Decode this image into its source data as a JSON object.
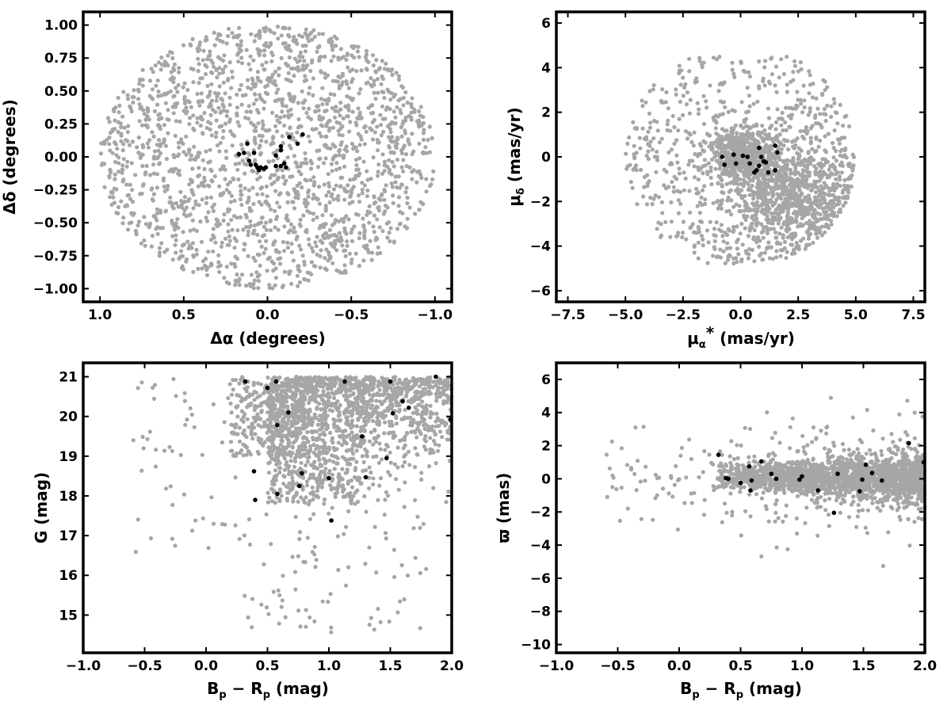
{
  "colors": {
    "field": "#a6a6a6",
    "members": "#000000",
    "axes": "#000000"
  },
  "chart_data": [
    {
      "type": "scatter",
      "title": "",
      "xlabel": "Δα (degrees)",
      "ylabel": "Δδ (degrees)",
      "xlim": [
        1.1,
        -1.1
      ],
      "ylim": [
        -1.1,
        1.1
      ],
      "x_inverted": true,
      "xticks": [
        1.0,
        0.5,
        0.0,
        -0.5,
        -1.0
      ],
      "xtick_labels": [
        "1.0",
        "0.5",
        "0.0",
        "−0.5",
        "−1.0"
      ],
      "yticks": [
        -1.0,
        -0.75,
        -0.5,
        -0.25,
        0.0,
        0.25,
        0.5,
        0.75,
        1.0
      ],
      "ytick_labels": [
        "−1.00",
        "−0.75",
        "−0.50",
        "−0.25",
        "0.00",
        "0.25",
        "0.50",
        "0.75",
        "1.00"
      ],
      "grid": false,
      "series": [
        {
          "role": "field stars",
          "color": "#a6a6a6",
          "distribution": "uniform within a circle of radius 1.0 deg centred on (0, 0)",
          "n_points": 1900
        },
        {
          "role": "highlighted stars",
          "color": "#000000",
          "points": [
            [
              0.17,
              0.02
            ],
            [
              0.14,
              0.03
            ],
            [
              0.12,
              0.1
            ],
            [
              0.11,
              -0.03
            ],
            [
              0.1,
              -0.06
            ],
            [
              0.08,
              0.03
            ],
            [
              0.07,
              -0.06
            ],
            [
              0.06,
              -0.08
            ],
            [
              0.05,
              -0.1
            ],
            [
              0.04,
              -0.08
            ],
            [
              0.02,
              -0.09
            ],
            [
              0.01,
              -0.08
            ],
            [
              -0.05,
              0.01
            ],
            [
              -0.05,
              -0.07
            ],
            [
              -0.08,
              0.08
            ],
            [
              -0.08,
              0.05
            ],
            [
              -0.08,
              -0.07
            ],
            [
              -0.1,
              -0.05
            ],
            [
              -0.11,
              -0.08
            ],
            [
              -0.13,
              0.15
            ],
            [
              -0.18,
              0.1
            ],
            [
              -0.21,
              0.17
            ]
          ]
        }
      ]
    },
    {
      "type": "scatter",
      "title": "",
      "xlabel": "μα* (mas/yr)",
      "ylabel": "μδ (mas/yr)",
      "xlim": [
        -8,
        8
      ],
      "ylim": [
        -6.5,
        6.5
      ],
      "xticks": [
        -7.5,
        -5.0,
        -2.5,
        0.0,
        2.5,
        5.0,
        7.5
      ],
      "xtick_labels": [
        "−7.5",
        "−5.0",
        "−2.5",
        "0.0",
        "2.5",
        "5.0",
        "7.5"
      ],
      "yticks": [
        -6,
        -4,
        -2,
        0,
        2,
        4,
        6
      ],
      "ytick_labels": [
        "−6",
        "−4",
        "−2",
        "0",
        "2",
        "4",
        "6"
      ],
      "grid": false,
      "series": [
        {
          "role": "field stars",
          "color": "#a6a6a6",
          "distribution": "disc of radius 5 mas/yr centred on (0, 0) clipped to -4.8 < μδ < 4.5, with dense clumps near (0, 0) and (2.5, -2)",
          "n_points": 2000
        },
        {
          "role": "highlighted stars",
          "color": "#000000",
          "points": [
            [
              -0.8,
              0.0
            ],
            [
              -0.7,
              -0.35
            ],
            [
              -0.3,
              0.1
            ],
            [
              -0.2,
              -0.3
            ],
            [
              0.1,
              0.05
            ],
            [
              0.3,
              0.0
            ],
            [
              0.4,
              -0.3
            ],
            [
              0.6,
              -0.7
            ],
            [
              0.7,
              -0.6
            ],
            [
              0.8,
              0.4
            ],
            [
              0.8,
              -0.4
            ],
            [
              0.9,
              0.0
            ],
            [
              1.0,
              -0.2
            ],
            [
              1.1,
              -0.25
            ],
            [
              1.2,
              -0.7
            ],
            [
              1.5,
              0.5
            ],
            [
              1.5,
              -0.6
            ],
            [
              1.6,
              0.2
            ]
          ]
        }
      ]
    },
    {
      "type": "scatter",
      "title": "",
      "xlabel": "Bp − Rp (mag)",
      "ylabel": "G (mag)",
      "xlim": [
        -1.0,
        2.0
      ],
      "ylim": [
        14.05,
        21.35
      ],
      "xticks": [
        -1.0,
        -0.5,
        0.0,
        0.5,
        1.0,
        1.5,
        2.0
      ],
      "xtick_labels": [
        "−1.0",
        "−0.5",
        "0.0",
        "0.5",
        "1.0",
        "1.5",
        "2.0"
      ],
      "yticks": [
        15,
        16,
        17,
        18,
        19,
        20,
        21
      ],
      "ytick_labels": [
        "15",
        "16",
        "17",
        "18",
        "19",
        "20",
        "21"
      ],
      "grid": false,
      "series": [
        {
          "role": "field stars",
          "color": "#a6a6a6",
          "distribution": "colour-magnitude diagram: dense band 0.5 < Bp-Rp < 2.0 for 18 < G < 21, sparse bluer and brighter stars, cut off at G = 21",
          "n_points": 2000
        },
        {
          "role": "highlighted stars",
          "color": "#000000",
          "points": [
            [
              0.32,
              20.88
            ],
            [
              0.5,
              20.72
            ],
            [
              0.57,
              20.88
            ],
            [
              0.58,
              19.78
            ],
            [
              0.67,
              20.1
            ],
            [
              0.39,
              18.62
            ],
            [
              0.4,
              17.9
            ],
            [
              0.58,
              18.05
            ],
            [
              0.76,
              18.25
            ],
            [
              0.78,
              18.57
            ],
            [
              1.0,
              18.45
            ],
            [
              1.02,
              17.38
            ],
            [
              1.13,
              20.88
            ],
            [
              1.27,
              19.5
            ],
            [
              1.3,
              18.47
            ],
            [
              1.47,
              18.95
            ],
            [
              1.5,
              20.88
            ],
            [
              1.52,
              20.08
            ],
            [
              1.6,
              20.38
            ],
            [
              1.65,
              20.22
            ],
            [
              1.87,
              21.0
            ],
            [
              1.99,
              19.92
            ]
          ]
        }
      ]
    },
    {
      "type": "scatter",
      "title": "",
      "xlabel": "Bp − Rp (mag)",
      "ylabel": "ϖ (mas)",
      "xlim": [
        -1.0,
        2.0
      ],
      "ylim": [
        -10.5,
        7.0
      ],
      "xticks": [
        -1.0,
        -0.5,
        0.0,
        0.5,
        1.0,
        1.5,
        2.0
      ],
      "xtick_labels": [
        "−1.0",
        "−0.5",
        "0.0",
        "0.5",
        "1.0",
        "1.5",
        "2.0"
      ],
      "yticks": [
        -10,
        -8,
        -6,
        -4,
        -2,
        0,
        2,
        4,
        6
      ],
      "ytick_labels": [
        "−10",
        "−8",
        "−6",
        "−4",
        "−2",
        "0",
        "2",
        "4",
        "6"
      ],
      "grid": false,
      "series": [
        {
          "role": "field stars",
          "color": "#a6a6a6",
          "distribution": "narrow band around ϖ = 0 for 0.3 < Bp-Rp < 2.0, scatter widening to about ±5 mas",
          "n_points": 2000
        },
        {
          "role": "highlighted stars",
          "color": "#000000",
          "points": [
            [
              0.32,
              1.45
            ],
            [
              0.38,
              0.05
            ],
            [
              0.4,
              0.0
            ],
            [
              0.5,
              -0.25
            ],
            [
              0.57,
              0.75
            ],
            [
              0.58,
              -0.7
            ],
            [
              0.59,
              -0.1
            ],
            [
              0.67,
              1.05
            ],
            [
              0.75,
              0.3
            ],
            [
              0.79,
              0.0
            ],
            [
              0.98,
              -0.05
            ],
            [
              1.0,
              0.15
            ],
            [
              1.13,
              -0.7
            ],
            [
              1.26,
              -2.05
            ],
            [
              1.29,
              0.3
            ],
            [
              1.47,
              -0.75
            ],
            [
              1.49,
              -0.05
            ],
            [
              1.52,
              0.85
            ],
            [
              1.57,
              0.35
            ],
            [
              1.65,
              -0.1
            ],
            [
              1.87,
              2.15
            ],
            [
              1.99,
              1.0
            ]
          ]
        }
      ]
    }
  ]
}
